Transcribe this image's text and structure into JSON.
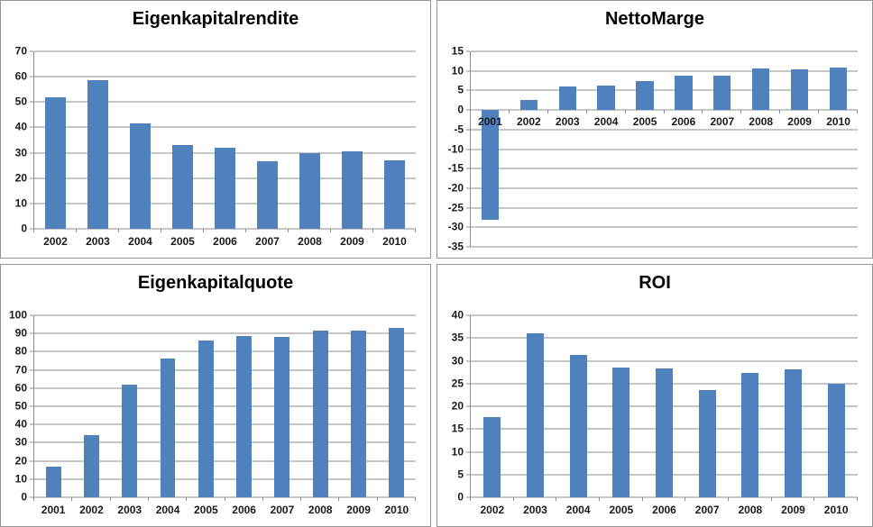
{
  "style": {
    "bar_color": "#4F81BD",
    "grid_color": "#8C8C8C",
    "axis_color": "#8C8C8C",
    "text_color": "#1A1A1E",
    "panel_border": "#969696",
    "background": "#FFFFFF"
  },
  "chart_data": [
    {
      "type": "bar",
      "title": "Eigenkapitalrendite",
      "categories": [
        "2002",
        "2003",
        "2004",
        "2005",
        "2006",
        "2007",
        "2008",
        "2009",
        "2010"
      ],
      "values": [
        52,
        58.5,
        41.5,
        33,
        32,
        26.8,
        30,
        30.5,
        27
      ],
      "ylim": [
        0,
        70
      ],
      "ystep": 10,
      "grid": true,
      "legend": false,
      "x_labels_position": "below",
      "bar_fraction": 0.5
    },
    {
      "type": "bar",
      "title": "NettoMarge",
      "categories": [
        "2001",
        "2002",
        "2003",
        "2004",
        "2005",
        "2006",
        "2007",
        "2008",
        "2009",
        "2010"
      ],
      "values": [
        -28,
        2.6,
        5.9,
        6.3,
        7.5,
        8.8,
        8.8,
        10.6,
        10.4,
        10.9
      ],
      "ylim": [
        -35,
        15
      ],
      "ystep": 5,
      "grid": true,
      "legend": false,
      "x_labels_position": "inside_at_zero",
      "bar_fraction": 0.45
    },
    {
      "type": "bar",
      "title": "Eigenkapitalquote",
      "categories": [
        "2001",
        "2002",
        "2003",
        "2004",
        "2005",
        "2006",
        "2007",
        "2008",
        "2009",
        "2010"
      ],
      "values": [
        17,
        34,
        62,
        76,
        86,
        88.5,
        88,
        91.5,
        91.5,
        93
      ],
      "ylim": [
        0,
        100
      ],
      "ystep": 10,
      "grid": true,
      "legend": false,
      "x_labels_position": "below",
      "bar_fraction": 0.4
    },
    {
      "type": "bar",
      "title": "ROI",
      "categories": [
        "2002",
        "2003",
        "2004",
        "2005",
        "2006",
        "2007",
        "2008",
        "2009",
        "2010"
      ],
      "values": [
        17.7,
        36,
        31.3,
        28.5,
        28.3,
        23.5,
        27.3,
        28.1,
        25
      ],
      "ylim": [
        0,
        40
      ],
      "ystep": 5,
      "grid": true,
      "legend": false,
      "x_labels_position": "below",
      "bar_fraction": 0.4
    }
  ]
}
